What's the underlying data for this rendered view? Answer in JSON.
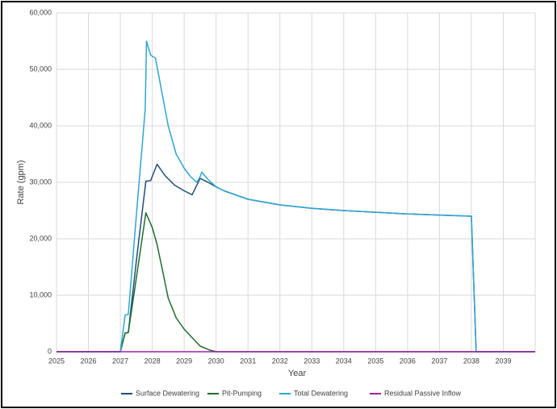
{
  "chart_data": {
    "type": "line",
    "x_label": "Year",
    "y_label": "Rate (gpm)",
    "xlim": [
      2025,
      2040
    ],
    "xticks": [
      2025,
      2026,
      2027,
      2028,
      2029,
      2030,
      2031,
      2032,
      2033,
      2034,
      2035,
      2036,
      2037,
      2038,
      2039
    ],
    "ylim": [
      0,
      60000
    ],
    "yticks": [
      0,
      {
        "value": 10000,
        "label": "10,000"
      },
      {
        "value": 20000,
        "label": "20,000"
      },
      {
        "value": 30000,
        "label": "30,000"
      },
      {
        "value": 40000,
        "label": "40,000"
      },
      {
        "value": 50000,
        "label": "50,000"
      },
      {
        "value": 60000,
        "label": "60,000"
      }
    ],
    "grid": true,
    "legend": "bottom",
    "series": [
      {
        "name": "Surface Dewatering",
        "color": "#1f4e79",
        "x": [
          2025,
          2027,
          2027.15,
          2027.25,
          2027.5,
          2027.8,
          2027.95,
          2028.15,
          2028.4,
          2028.7,
          2029,
          2029.25,
          2029.5,
          2029.75,
          2030,
          2030.25,
          2031,
          2032,
          2033,
          2034,
          2035,
          2036,
          2037,
          2038,
          2038.15,
          2040
        ],
        "values": [
          0,
          0,
          3300,
          3400,
          16000,
          30200,
          30300,
          33200,
          31200,
          29500,
          28500,
          27800,
          30700,
          30000,
          29200,
          28500,
          27000,
          26000,
          25400,
          25000,
          24700,
          24400,
          24200,
          24000,
          0,
          0
        ]
      },
      {
        "name": "Pit-Pumping",
        "color": "#1e6b2e",
        "x": [
          2025,
          2027,
          2027.15,
          2027.25,
          2027.5,
          2027.8,
          2028,
          2028.15,
          2028.3,
          2028.5,
          2028.75,
          2029,
          2029.3,
          2029.5,
          2029.8,
          2030,
          2040
        ],
        "values": [
          0,
          0,
          3300,
          3400,
          13000,
          24600,
          22000,
          19000,
          15000,
          9500,
          6000,
          4000,
          2200,
          1000,
          300,
          0,
          0
        ]
      },
      {
        "name": "Total Dewatering",
        "color": "#2ea6cf",
        "x": [
          2025,
          2027,
          2027.15,
          2027.25,
          2027.5,
          2027.78,
          2027.82,
          2027.95,
          2028.1,
          2028.3,
          2028.5,
          2028.75,
          2029,
          2029.2,
          2029.4,
          2029.5,
          2029.55,
          2029.75,
          2030,
          2030.25,
          2031,
          2032,
          2033,
          2034,
          2035,
          2036,
          2037,
          2038,
          2038.15,
          2040
        ],
        "values": [
          0,
          0,
          6500,
          6600,
          24000,
          43000,
          55000,
          52500,
          52000,
          46000,
          40000,
          35000,
          32500,
          31000,
          30000,
          31000,
          31800,
          30500,
          29200,
          28500,
          27000,
          26000,
          25400,
          25000,
          24700,
          24400,
          24200,
          24000,
          0,
          0
        ]
      },
      {
        "name": "Residual Passive Inflow",
        "color": "#a020a0",
        "x": [
          2025,
          2030,
          2035,
          2040
        ],
        "values": [
          0,
          0,
          0,
          0
        ]
      }
    ]
  }
}
